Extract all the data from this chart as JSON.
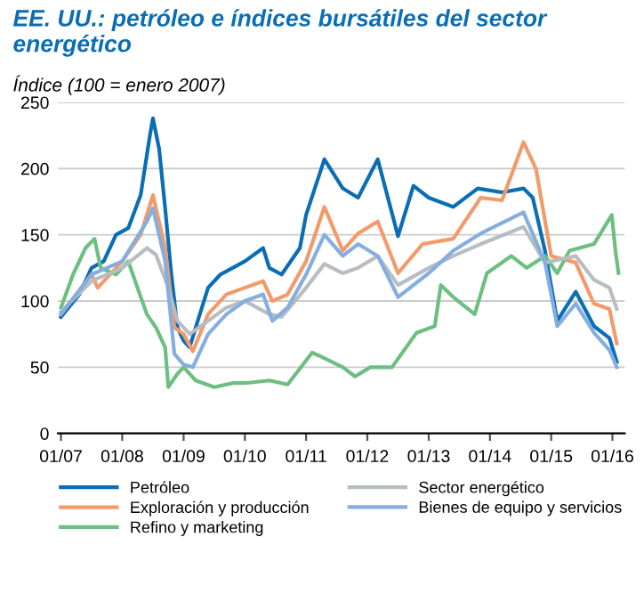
{
  "chart_data": {
    "type": "line",
    "title": "EE. UU.: petróleo e índices bursátiles del sector energético",
    "subtitle": "Índice (100 = enero 2007)",
    "xlim": [
      "2006-12-14",
      "2016-03-14"
    ],
    "ylim": [
      0,
      250
    ],
    "xticks": [
      {
        "value": "2007-01-01",
        "label": "01/07"
      },
      {
        "value": "2008-01-01",
        "label": "01/08"
      },
      {
        "value": "2009-01-01",
        "label": "01/09"
      },
      {
        "value": "2010-01-01",
        "label": "01/10"
      },
      {
        "value": "2011-01-01",
        "label": "01/11"
      },
      {
        "value": "2012-01-01",
        "label": "01/12"
      },
      {
        "value": "2013-01-01",
        "label": "01/13"
      },
      {
        "value": "2014-01-01",
        "label": "01/14"
      },
      {
        "value": "2015-01-01",
        "label": "01/15"
      },
      {
        "value": "2016-01-01",
        "label": "01/16"
      }
    ],
    "yticks": [
      0,
      50,
      100,
      150,
      200,
      250
    ],
    "grid": "y",
    "legend": "bottom",
    "marker": "none",
    "line_style": "solid",
    "series": [
      {
        "name": "Petróleo",
        "color": "#0a6eb4",
        "x": [
          "2007-01-01",
          "2007-04-20",
          "2007-07-02",
          "2007-09-13",
          "2007-11-25",
          "2008-02-06",
          "2008-04-20",
          "2008-06-14",
          "2008-07-02",
          "2008-08-08",
          "2008-09-13",
          "2008-10-20",
          "2008-11-25",
          "2009-01-01",
          "2009-02-06",
          "2009-03-14",
          "2009-05-27",
          "2009-08-08",
          "2009-10-20",
          "2010-01-01",
          "2010-04-20",
          "2010-05-27",
          "2010-08-08",
          "2010-11-25",
          "2011-01-01",
          "2011-04-20",
          "2011-08-08",
          "2011-11-07",
          "2012-03-03",
          "2012-07-02",
          "2012-10-02",
          "2013-01-01",
          "2013-05-27",
          "2013-10-20",
          "2014-03-14",
          "2014-07-20",
          "2014-09-13",
          "2014-11-25",
          "2015-02-06",
          "2015-05-27",
          "2015-09-13",
          "2015-12-14",
          "2016-01-27"
        ],
        "values": [
          88,
          105,
          125,
          130,
          150,
          155,
          180,
          225,
          238,
          215,
          170,
          120,
          80,
          70,
          65,
          80,
          110,
          120,
          125,
          130,
          140,
          125,
          120,
          140,
          165,
          207,
          185,
          178,
          207,
          149,
          187,
          178,
          171,
          185,
          182,
          185,
          178,
          138,
          85,
          107,
          81,
          72,
          54
        ]
      },
      {
        "name": "Exploración y producción",
        "color": "#f39a6b",
        "x": [
          "2007-01-01",
          "2007-07-02",
          "2007-08-08",
          "2008-01-01",
          "2008-04-20",
          "2008-07-02",
          "2008-09-13",
          "2008-11-07",
          "2009-01-01",
          "2009-02-25",
          "2009-05-27",
          "2009-09-13",
          "2010-01-01",
          "2010-04-20",
          "2010-06-14",
          "2010-09-13",
          "2011-01-01",
          "2011-04-20",
          "2011-08-08",
          "2011-11-07",
          "2012-03-03",
          "2012-07-02",
          "2012-11-25",
          "2013-05-27",
          "2013-11-07",
          "2014-03-14",
          "2014-07-20",
          "2014-10-02",
          "2015-01-01",
          "2015-05-27",
          "2015-09-13",
          "2015-12-14",
          "2016-01-27"
        ],
        "values": [
          90,
          120,
          110,
          130,
          150,
          180,
          140,
          80,
          75,
          62,
          90,
          105,
          110,
          115,
          100,
          105,
          130,
          171,
          138,
          151,
          160,
          121,
          143,
          147,
          178,
          176,
          220,
          200,
          134,
          129,
          98,
          94,
          68
        ]
      },
      {
        "name": "Refino y marketing",
        "color": "#6cbf7f",
        "x": [
          "2007-01-01",
          "2007-03-14",
          "2007-05-27",
          "2007-07-20",
          "2007-08-26",
          "2007-11-25",
          "2008-02-06",
          "2008-04-01",
          "2008-05-27",
          "2008-07-20",
          "2008-09-13",
          "2008-10-02",
          "2008-11-25",
          "2009-01-01",
          "2009-03-14",
          "2009-07-02",
          "2009-10-20",
          "2010-01-01",
          "2010-05-27",
          "2010-09-13",
          "2011-02-06",
          "2011-03-14",
          "2011-08-08",
          "2011-10-20",
          "2012-01-19",
          "2012-05-27",
          "2012-10-20",
          "2013-02-06",
          "2013-03-14",
          "2013-05-27",
          "2013-10-02",
          "2013-12-14",
          "2014-05-08",
          "2014-08-08",
          "2014-11-25",
          "2015-02-06",
          "2015-04-20",
          "2015-09-13",
          "2015-12-28",
          "2016-01-19",
          "2016-02-06"
        ],
        "values": [
          95,
          120,
          140,
          147,
          125,
          120,
          130,
          110,
          90,
          80,
          65,
          35,
          45,
          50,
          40,
          35,
          38,
          38,
          40,
          37,
          61,
          59,
          50,
          43,
          50,
          50,
          76,
          81,
          112,
          103,
          90,
          121,
          134,
          125,
          134,
          121,
          138,
          143,
          165,
          138,
          121
        ]
      },
      {
        "name": "Sector energético",
        "color": "#b7bdc1",
        "x": [
          "2007-01-01",
          "2007-07-02",
          "2008-01-01",
          "2008-05-27",
          "2008-07-20",
          "2008-10-02",
          "2008-11-25",
          "2009-02-06",
          "2009-05-27",
          "2009-09-13",
          "2010-01-01",
          "2010-05-27",
          "2010-08-08",
          "2011-01-01",
          "2011-04-20",
          "2011-08-08",
          "2011-11-07",
          "2012-03-03",
          "2012-07-02",
          "2013-01-01",
          "2013-05-27",
          "2013-11-07",
          "2014-07-20",
          "2014-11-25",
          "2015-05-27",
          "2015-09-13",
          "2015-12-14",
          "2016-01-27"
        ],
        "values": [
          92,
          115,
          125,
          140,
          135,
          110,
          85,
          75,
          85,
          95,
          100,
          90,
          88,
          110,
          128,
          121,
          125,
          134,
          112,
          125,
          134,
          143,
          156,
          129,
          134,
          116,
          110,
          94
        ]
      },
      {
        "name": "Bienes de equipo y servicios",
        "color": "#85aee0",
        "x": [
          "2007-01-01",
          "2007-07-02",
          "2008-01-01",
          "2008-05-27",
          "2008-07-02",
          "2008-09-13",
          "2008-11-07",
          "2009-01-01",
          "2009-02-25",
          "2009-05-27",
          "2009-09-13",
          "2010-01-01",
          "2010-04-20",
          "2010-06-14",
          "2010-09-13",
          "2011-01-01",
          "2011-04-20",
          "2011-08-08",
          "2011-11-07",
          "2012-03-03",
          "2012-07-02",
          "2013-01-01",
          "2013-05-27",
          "2013-11-07",
          "2014-07-20",
          "2014-11-25",
          "2015-02-06",
          "2015-05-27",
          "2015-09-13",
          "2015-12-14",
          "2016-01-27"
        ],
        "values": [
          90,
          120,
          130,
          160,
          170,
          130,
          60,
          52,
          50,
          75,
          90,
          100,
          105,
          85,
          95,
          120,
          150,
          134,
          143,
          134,
          103,
          121,
          138,
          151,
          167,
          129,
          81,
          98,
          76,
          63,
          50
        ]
      }
    ]
  }
}
